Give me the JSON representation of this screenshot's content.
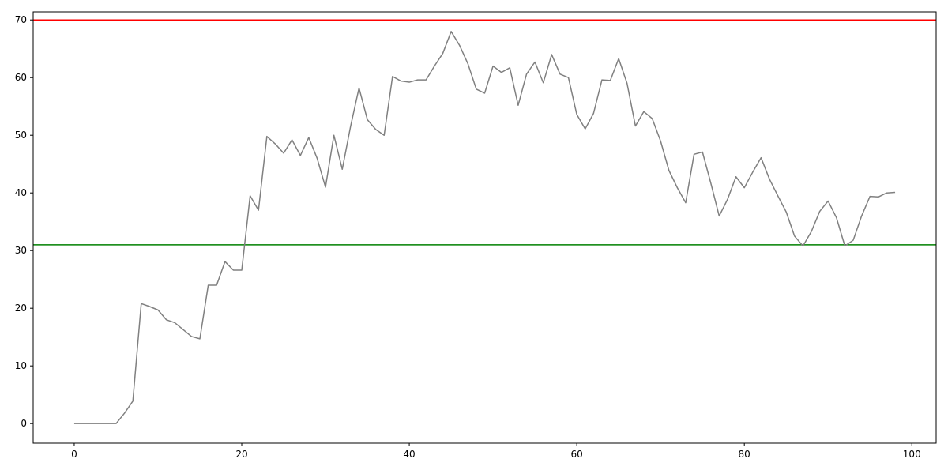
{
  "chart_data": {
    "type": "line",
    "title": "",
    "xlabel": "",
    "ylabel": "",
    "xlim": [
      -4.9,
      102.9
    ],
    "ylim": [
      -3.4,
      71.4
    ],
    "grid": false,
    "x_ticks": [
      0,
      20,
      40,
      60,
      80,
      100
    ],
    "y_ticks": [
      0,
      10,
      20,
      30,
      40,
      50,
      60,
      70
    ],
    "series": [
      {
        "color": "#808080",
        "x": [
          0,
          1,
          2,
          3,
          4,
          5,
          6,
          7,
          8,
          9,
          10,
          11,
          12,
          13,
          14,
          15,
          16,
          17,
          18,
          19,
          20,
          21,
          22,
          23,
          24,
          25,
          26,
          27,
          28,
          29,
          30,
          31,
          32,
          33,
          34,
          35,
          36,
          37,
          38,
          39,
          40,
          41,
          42,
          43,
          44,
          45,
          46,
          47,
          48,
          49,
          50,
          51,
          52,
          53,
          54,
          55,
          56,
          57,
          58,
          59,
          60,
          61,
          62,
          63,
          64,
          65,
          66,
          67,
          68,
          69,
          70,
          71,
          72,
          73,
          74,
          75,
          76,
          77,
          78,
          79,
          80,
          81,
          82,
          83,
          84,
          85,
          86,
          87,
          88,
          89,
          90,
          91,
          92,
          93,
          94,
          95,
          96,
          97,
          98
        ],
        "values": [
          0,
          0,
          0,
          0,
          0,
          0,
          1.8,
          3.9,
          20.8,
          20.3,
          19.7,
          18.0,
          17.5,
          16.3,
          15.1,
          14.7,
          24.0,
          24.0,
          28.1,
          26.6,
          26.6,
          39.5,
          37.0,
          49.8,
          48.5,
          46.9,
          49.2,
          46.5,
          49.6,
          46.0,
          41.0,
          50.0,
          44.1,
          51.6,
          58.2,
          52.7,
          51.0,
          50.0,
          60.2,
          59.4,
          59.2,
          59.6,
          59.6,
          62.0,
          64.2,
          68.0,
          65.6,
          62.4,
          58.0,
          57.3,
          62.0,
          60.9,
          61.7,
          55.2,
          60.6,
          62.7,
          59.1,
          64.0,
          60.6,
          60.0,
          53.6,
          51.1,
          53.8,
          59.6,
          59.5,
          63.3,
          59.0,
          51.6,
          54.1,
          52.9,
          49.0,
          43.9,
          40.9,
          38.3,
          46.7,
          47.1,
          41.7,
          36.0,
          38.9,
          42.8,
          40.9,
          43.6,
          46.1,
          42.4,
          39.5,
          36.7,
          32.5,
          30.8,
          33.3,
          36.8,
          38.6,
          35.7,
          30.8,
          31.8,
          36.0,
          39.4,
          39.3,
          40.0,
          40.1
        ]
      }
    ],
    "hlines": [
      {
        "y": 70,
        "color": "#ff0000"
      },
      {
        "y": 31,
        "color": "#008000"
      }
    ]
  }
}
